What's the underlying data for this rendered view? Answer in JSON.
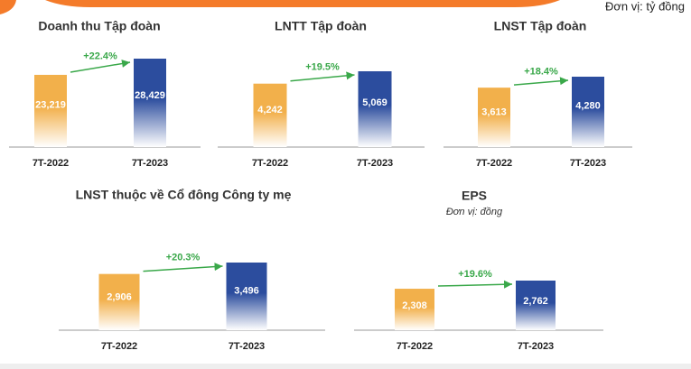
{
  "unit": "Đơn vị: tỷ đồng",
  "chart_data": [
    {
      "type": "bar",
      "title": "Doanh thu Tập đoàn",
      "categories": [
        "7T-2022",
        "7T-2023"
      ],
      "values": [
        23219,
        28429
      ],
      "value_labels": [
        "23,219",
        "28,429"
      ],
      "colors": [
        "#f2b04b",
        "#2c4d9e"
      ],
      "annotation": "+22.4%"
    },
    {
      "type": "bar",
      "title": "LNTT Tập đoàn",
      "categories": [
        "7T-2022",
        "7T-2023"
      ],
      "values": [
        4242,
        5069
      ],
      "value_labels": [
        "4,242",
        "5,069"
      ],
      "colors": [
        "#f2b04b",
        "#2c4d9e"
      ],
      "annotation": "+19.5%"
    },
    {
      "type": "bar",
      "title": "LNST Tập đoàn",
      "categories": [
        "7T-2022",
        "7T-2023"
      ],
      "values": [
        3613,
        4280
      ],
      "value_labels": [
        "3,613",
        "4,280"
      ],
      "colors": [
        "#f2b04b",
        "#2c4d9e"
      ],
      "annotation": "+18.4%"
    },
    {
      "type": "bar",
      "title": "LNST thuộc về Cổ đông Công ty mẹ",
      "categories": [
        "7T-2022",
        "7T-2023"
      ],
      "values": [
        2906,
        3496
      ],
      "value_labels": [
        "2,906",
        "3,496"
      ],
      "colors": [
        "#f2b04b",
        "#2c4d9e"
      ],
      "annotation": "+20.3%"
    },
    {
      "type": "bar",
      "title": "EPS",
      "subtitle": "Đơn vị: đồng",
      "categories": [
        "7T-2022",
        "7T-2023"
      ],
      "values": [
        2308,
        2762
      ],
      "value_labels": [
        "2,308",
        "2,762"
      ],
      "colors": [
        "#f2b04b",
        "#2c4d9e"
      ],
      "annotation": "+19.6%"
    }
  ]
}
